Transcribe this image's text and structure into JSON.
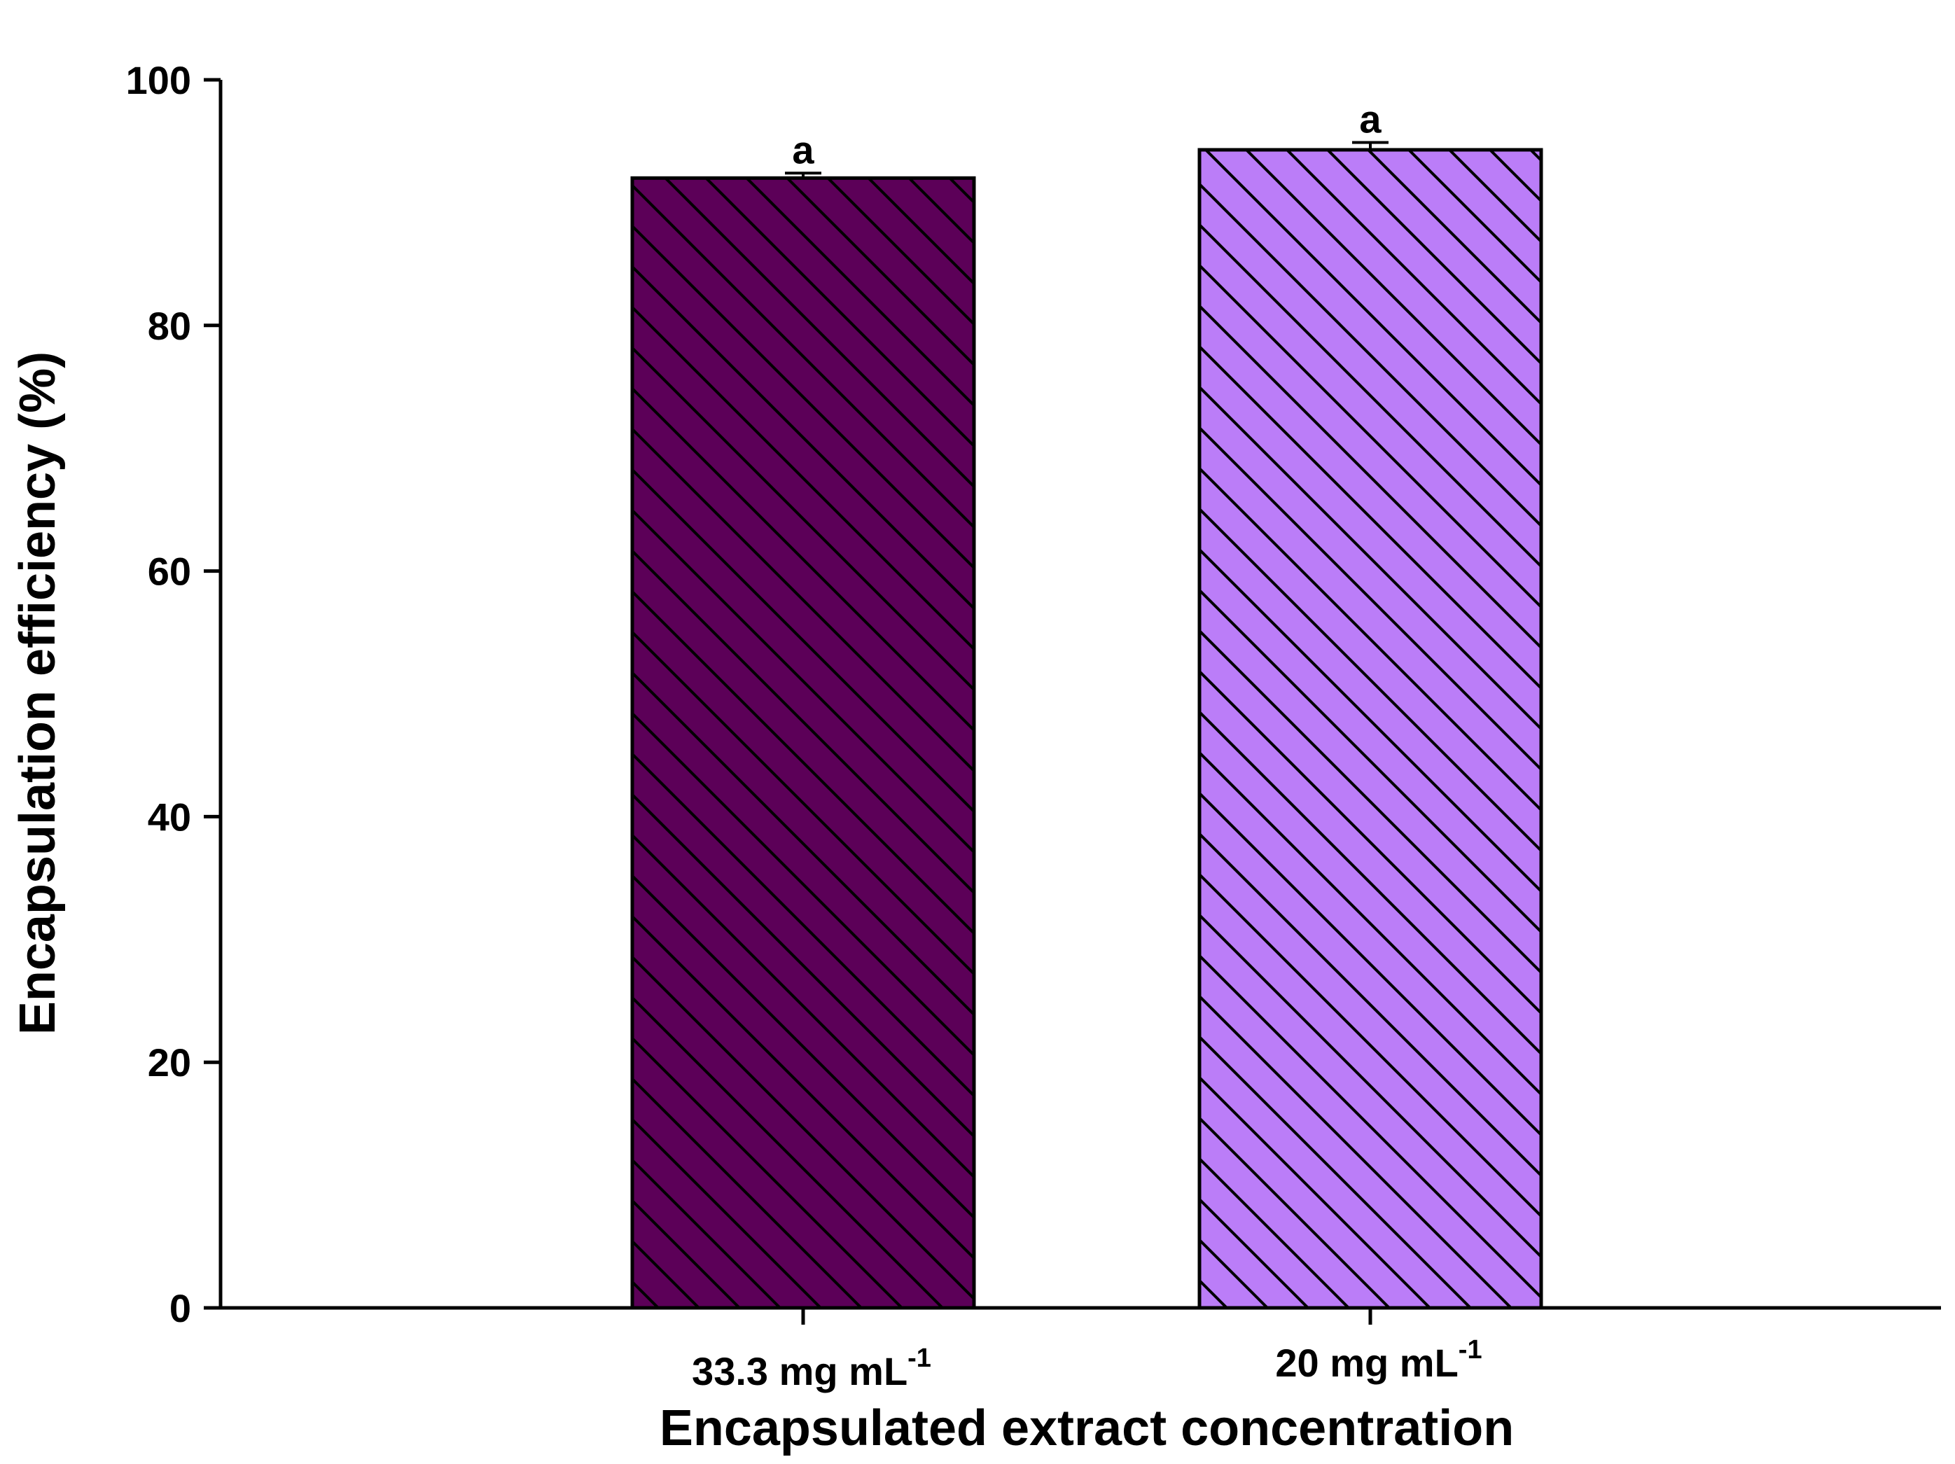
{
  "chart_data": {
    "type": "bar",
    "categories": [
      {
        "base": "33.3 mg mL",
        "sup": "-1"
      },
      {
        "base": "20 mg mL",
        "sup": "-1"
      }
    ],
    "values": [
      92.0,
      94.3
    ],
    "errors": [
      0.4,
      0.6
    ],
    "significance_letters": [
      "a",
      "a"
    ],
    "colors": [
      "#5c0058",
      "#bb7df8"
    ],
    "pattern": "diagonal-hatch",
    "xlabel": "Encapsulated extract concentration",
    "ylabel": "Encapsulation efficiency (%)",
    "ylim": [
      0,
      100
    ],
    "yticks": [
      0,
      20,
      40,
      60,
      80,
      100
    ],
    "grid": false,
    "legend": false
  }
}
